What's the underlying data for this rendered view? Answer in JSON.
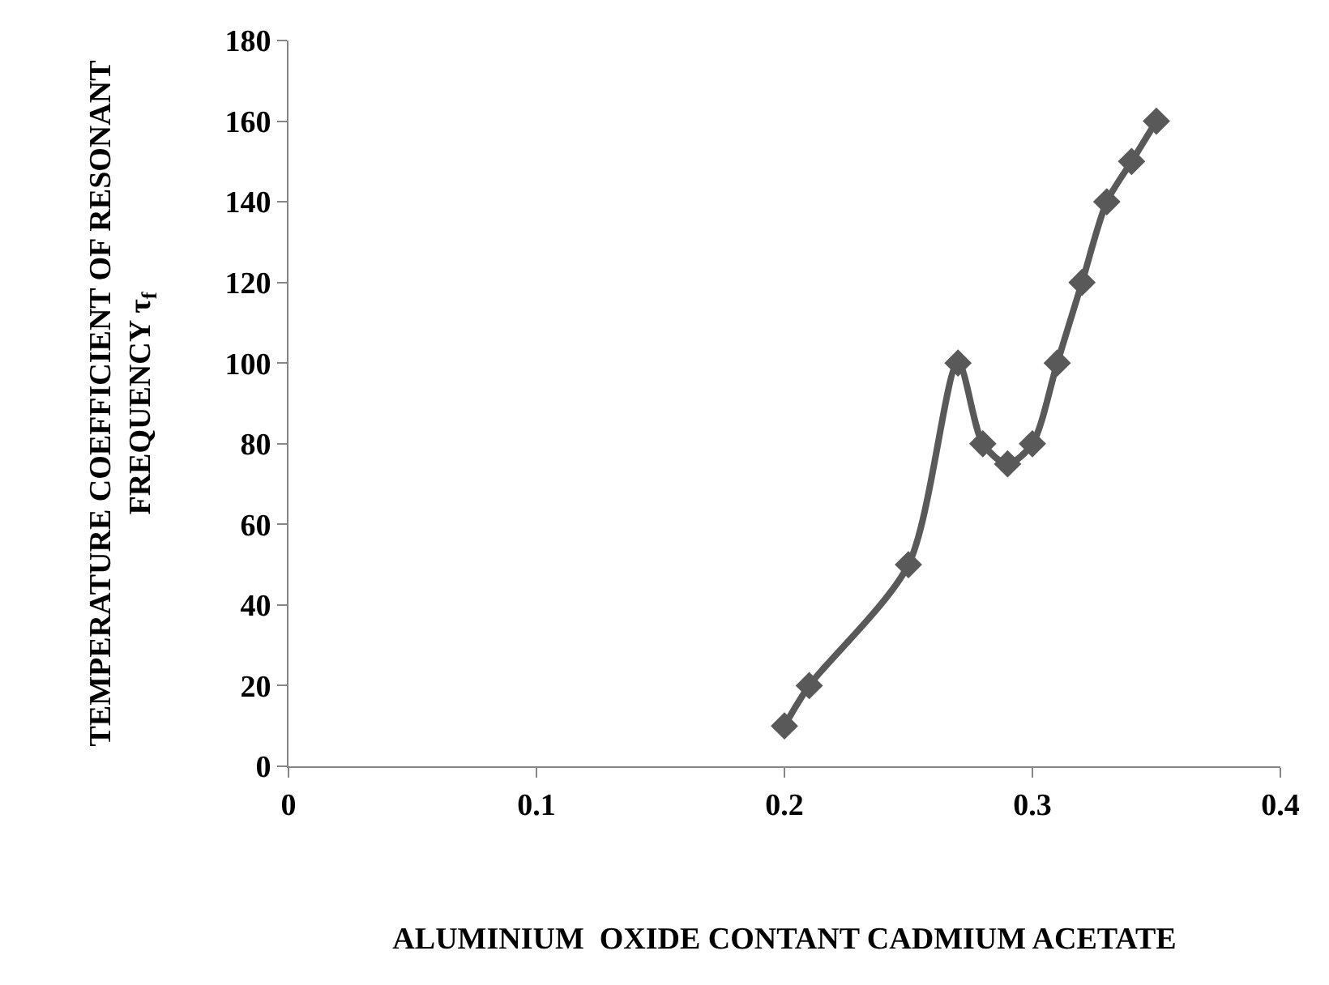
{
  "chart_data": {
    "type": "line",
    "xlabel": "ALUMINIUM  OXIDE CONTANT CADMIUM ACETATE",
    "ylabel": "TEMPERATURE COEFFICIENT OF RESONANT\nFREQUENCY τ$_{f}$",
    "x": [
      0.2,
      0.21,
      0.25,
      0.27,
      0.28,
      0.29,
      0.3,
      0.31,
      0.32,
      0.33,
      0.34,
      0.35
    ],
    "series": [
      {
        "color": "#595959",
        "values": [
          10,
          20,
          50,
          100,
          80,
          75,
          80,
          100,
          120,
          140,
          150,
          160
        ]
      }
    ],
    "xlim": [
      0,
      0.4
    ],
    "xticks": [
      0,
      0.1,
      0.2,
      0.3,
      0.4
    ],
    "ylim": [
      0,
      180
    ],
    "yticks": [
      0,
      20,
      40,
      60,
      80,
      100,
      120,
      140,
      160,
      180
    ],
    "grid": false,
    "marker": "diamond",
    "line_style": "solid"
  }
}
